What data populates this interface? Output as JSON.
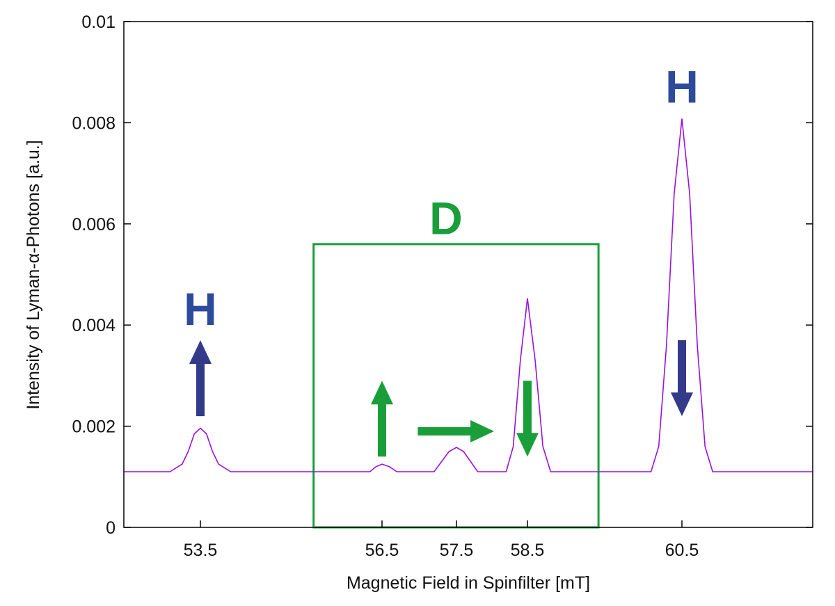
{
  "chart_data": {
    "type": "line",
    "title": "",
    "xlabel": "Magnetic Field in Spinfilter [mT]",
    "ylabel": "Intensity of Lyman-α-Photons [a.u.]",
    "xticks": [
      53.5,
      56.5,
      57.5,
      58.5,
      60.5
    ],
    "xtick_labels": [
      "53.5",
      "56.5",
      "57.5",
      "58.5",
      "60.5"
    ],
    "xlim": [
      52.24,
      62.2
    ],
    "yticks": [
      0,
      0.002,
      0.004,
      0.006,
      0.008,
      0.01
    ],
    "ytick_labels": [
      "0",
      "0.002",
      "0.004",
      "0.006",
      "0.008",
      "0.01"
    ],
    "ylim": [
      0,
      0.01
    ],
    "grid": false,
    "series": [
      {
        "color": "#9a10e0",
        "x": [
          52.24,
          53.0,
          53.2,
          53.3,
          53.4,
          53.5,
          53.6,
          53.7,
          53.8,
          54.0,
          56.3,
          56.4,
          56.5,
          56.6,
          56.7,
          57.2,
          57.3,
          57.4,
          57.5,
          57.6,
          57.7,
          57.8,
          58.2,
          58.3,
          58.4,
          58.5,
          58.6,
          58.7,
          58.8,
          60.1,
          60.2,
          60.3,
          60.4,
          60.5,
          60.6,
          60.7,
          60.8,
          60.9,
          62.2
        ],
        "y": [
          0.0011,
          0.0011,
          0.00125,
          0.0015,
          0.00185,
          0.00196,
          0.00185,
          0.0015,
          0.00125,
          0.0011,
          0.0011,
          0.0012,
          0.00125,
          0.0012,
          0.0011,
          0.0011,
          0.0013,
          0.0015,
          0.00158,
          0.0015,
          0.0013,
          0.0011,
          0.0011,
          0.0016,
          0.0033,
          0.00453,
          0.0033,
          0.0016,
          0.0011,
          0.0011,
          0.0016,
          0.0036,
          0.0066,
          0.00808,
          0.0066,
          0.0036,
          0.0016,
          0.0011,
          0.0011
        ]
      }
    ],
    "annotations": {
      "labels": [
        {
          "text": "H",
          "x": 53.5,
          "y": 0.004,
          "color": "#2e4a9a"
        },
        {
          "text": "H",
          "x": 60.5,
          "y": 0.0084,
          "color": "#2e4a9a"
        },
        {
          "text": "D",
          "x": 57.36,
          "y": 0.0058,
          "color": "#1a9e3a"
        }
      ],
      "box": {
        "x0": 55.37,
        "x1": 59.42,
        "y0": 0,
        "y1": 0.0056,
        "color": "#1a9e3a"
      },
      "arrows": [
        {
          "name": "spin-up-arrow-h",
          "x0": 53.5,
          "y0": 0.0022,
          "x1": 53.5,
          "y1": 0.0037,
          "color": "#333a8a"
        },
        {
          "name": "spin-up-arrow-d",
          "x0": 56.5,
          "y0": 0.0014,
          "x1": 56.5,
          "y1": 0.0029,
          "color": "#1a9e3a"
        },
        {
          "name": "spin-right-arrow-d",
          "x0": 56.98,
          "y0": 0.0019,
          "x1": 58.03,
          "y1": 0.0019,
          "color": "#1a9e3a"
        },
        {
          "name": "spin-down-arrow-d",
          "x0": 58.5,
          "y0": 0.0029,
          "x1": 58.5,
          "y1": 0.0014,
          "color": "#1a9e3a"
        },
        {
          "name": "spin-down-arrow-h",
          "x0": 60.5,
          "y0": 0.0037,
          "x1": 60.5,
          "y1": 0.0022,
          "color": "#333a8a"
        }
      ]
    }
  }
}
